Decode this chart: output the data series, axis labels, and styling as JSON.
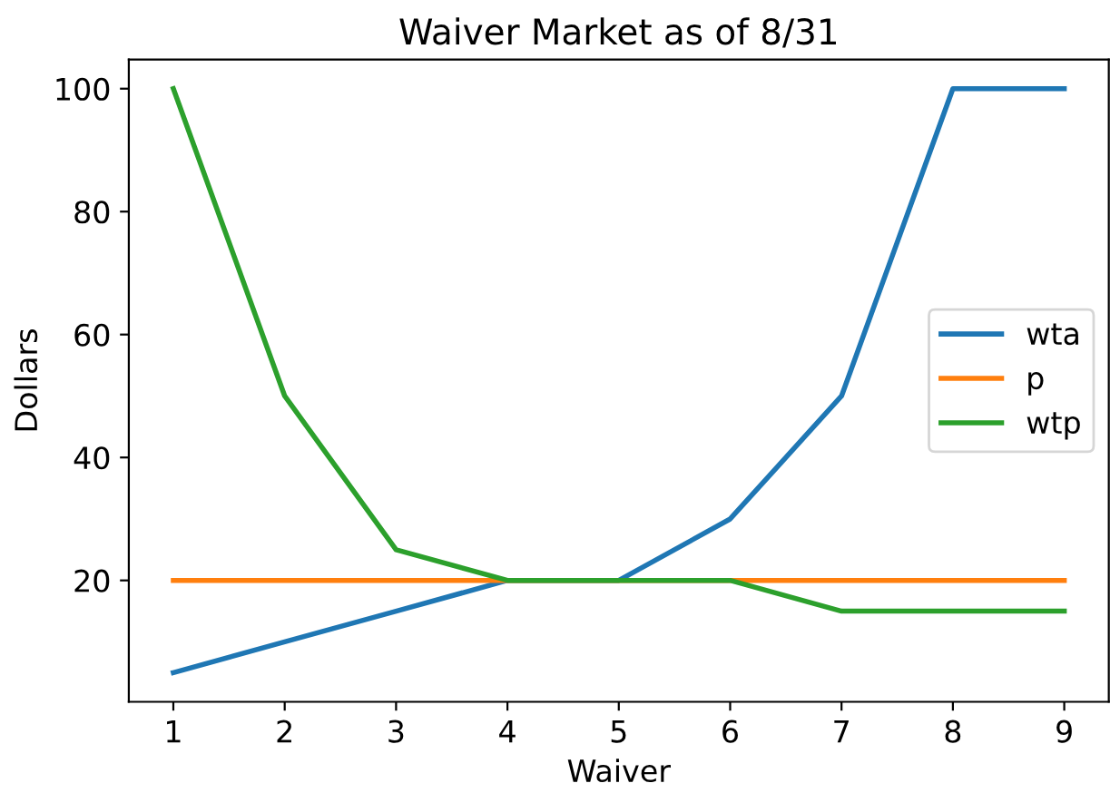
{
  "chart_data": {
    "type": "line",
    "title": "Waiver Market as of 8/31",
    "xlabel": "Waiver",
    "ylabel": "Dollars",
    "x": [
      1,
      2,
      3,
      4,
      5,
      6,
      7,
      8,
      9
    ],
    "series": [
      {
        "name": "wta",
        "color": "#1f77b4",
        "values": [
          5,
          10,
          15,
          20,
          20,
          30,
          50,
          100,
          100
        ]
      },
      {
        "name": "p",
        "color": "#ff7f0e",
        "values": [
          20,
          20,
          20,
          20,
          20,
          20,
          20,
          20,
          20
        ]
      },
      {
        "name": "wtp",
        "color": "#2ca02c",
        "values": [
          100,
          50,
          25,
          20,
          20,
          20,
          15,
          15,
          15
        ]
      }
    ],
    "xlim": [
      0.6,
      9.4
    ],
    "xticks": [
      1,
      2,
      3,
      4,
      5,
      6,
      7,
      8,
      9
    ],
    "ylim": [
      0.25,
      104.75
    ],
    "yticks": [
      20,
      40,
      60,
      80,
      100
    ],
    "grid": false,
    "legend": "right",
    "marker": "none",
    "line_style": "solid"
  }
}
